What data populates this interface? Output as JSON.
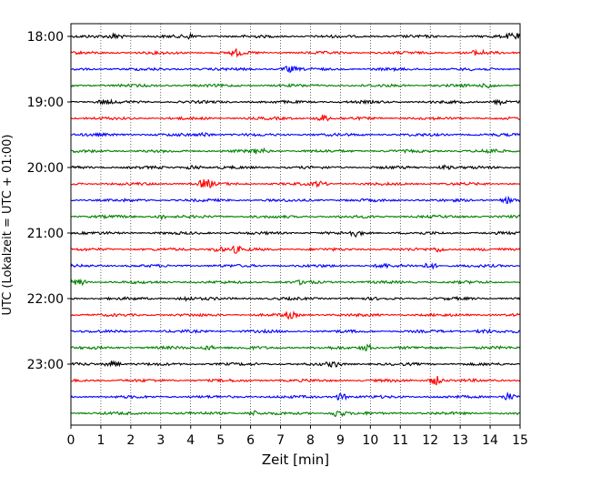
{
  "chart_data": {
    "type": "line",
    "title": "",
    "xlabel": "Zeit  [min]",
    "ylabel": "UTC (Lokalzeit = UTC + 01:00)",
    "xlim": [
      0,
      15
    ],
    "x_ticks": [
      "0",
      "1",
      "2",
      "3",
      "4",
      "5",
      "6",
      "7",
      "8",
      "9",
      "10",
      "11",
      "12",
      "13",
      "14",
      "15"
    ],
    "y_ticks": [
      {
        "label": "18:00",
        "row": 0
      },
      {
        "label": "19:00",
        "row": 4
      },
      {
        "label": "20:00",
        "row": 8
      },
      {
        "label": "21:00",
        "row": 12
      },
      {
        "label": "22:00",
        "row": 16
      },
      {
        "label": "23:00",
        "row": 20
      }
    ],
    "traces_per_hour": 4,
    "trace_minutes": 15,
    "trace_colors": [
      "#000000",
      "#ff0000",
      "#0000ff",
      "#008000"
    ],
    "grid": "vertical dotted at each minute",
    "series": [
      {
        "start": "18:00",
        "color": "#000000",
        "events": [
          [
            1.5,
            0.8
          ],
          [
            4,
            0.6
          ],
          [
            14.8,
            0.9
          ]
        ]
      },
      {
        "start": "18:15",
        "color": "#ff0000",
        "events": [
          [
            5.5,
            0.7
          ],
          [
            13.6,
            0.6
          ]
        ]
      },
      {
        "start": "18:30",
        "color": "#0000ff",
        "events": [
          [
            7.3,
            0.8
          ]
        ]
      },
      {
        "start": "18:45",
        "color": "#008000",
        "events": [
          [
            14,
            0.7
          ]
        ]
      },
      {
        "start": "19:00",
        "color": "#000000",
        "events": [
          [
            1.1,
            0.5
          ],
          [
            14.3,
            0.6
          ]
        ]
      },
      {
        "start": "19:15",
        "color": "#ff0000",
        "events": [
          [
            8.4,
            0.9
          ]
        ]
      },
      {
        "start": "19:30",
        "color": "#0000ff",
        "events": [
          [
            4.5,
            0.5
          ]
        ]
      },
      {
        "start": "19:45",
        "color": "#008000",
        "events": [
          [
            6.3,
            0.7
          ],
          [
            14,
            0.5
          ]
        ]
      },
      {
        "start": "20:00",
        "color": "#000000",
        "events": [
          [
            4.1,
            0.6
          ],
          [
            12.5,
            0.5
          ]
        ]
      },
      {
        "start": "20:15",
        "color": "#ff0000",
        "events": [
          [
            4.5,
            1.3
          ],
          [
            8.3,
            0.6
          ]
        ]
      },
      {
        "start": "20:30",
        "color": "#0000ff",
        "events": [
          [
            14.6,
            0.7
          ]
        ]
      },
      {
        "start": "20:45",
        "color": "#008000",
        "events": [
          [
            3,
            0.5
          ]
        ]
      },
      {
        "start": "21:00",
        "color": "#000000",
        "events": [
          [
            9.5,
            0.7
          ]
        ]
      },
      {
        "start": "21:15",
        "color": "#ff0000",
        "events": [
          [
            4.9,
            0.7
          ],
          [
            5.5,
            0.8
          ],
          [
            12.3,
            0.6
          ]
        ]
      },
      {
        "start": "21:30",
        "color": "#0000ff",
        "events": [
          [
            10.4,
            0.5
          ],
          [
            12,
            0.8
          ]
        ]
      },
      {
        "start": "21:45",
        "color": "#008000",
        "events": [
          [
            0.3,
            0.8
          ],
          [
            7.8,
            0.5
          ]
        ]
      },
      {
        "start": "22:00",
        "color": "#000000",
        "events": [
          [
            3.8,
            0.5
          ]
        ]
      },
      {
        "start": "22:15",
        "color": "#ff0000",
        "events": [
          [
            7.3,
            0.8
          ]
        ]
      },
      {
        "start": "22:30",
        "color": "#0000ff",
        "events": [
          [
            13.8,
            0.5
          ]
        ]
      },
      {
        "start": "22:45",
        "color": "#008000",
        "events": [
          [
            4.6,
            0.6
          ],
          [
            9.9,
            0.9
          ]
        ]
      },
      {
        "start": "23:00",
        "color": "#000000",
        "events": [
          [
            1.4,
            0.9
          ],
          [
            8.8,
            0.6
          ]
        ]
      },
      {
        "start": "23:15",
        "color": "#ff0000",
        "events": [
          [
            12.2,
            1.2
          ]
        ]
      },
      {
        "start": "23:30",
        "color": "#0000ff",
        "events": [
          [
            9,
            0.9
          ],
          [
            14.6,
            1.0
          ]
        ]
      },
      {
        "start": "23:45",
        "color": "#008000",
        "events": [
          [
            8.9,
            1.0
          ],
          [
            6.1,
            0.6
          ]
        ]
      }
    ]
  }
}
